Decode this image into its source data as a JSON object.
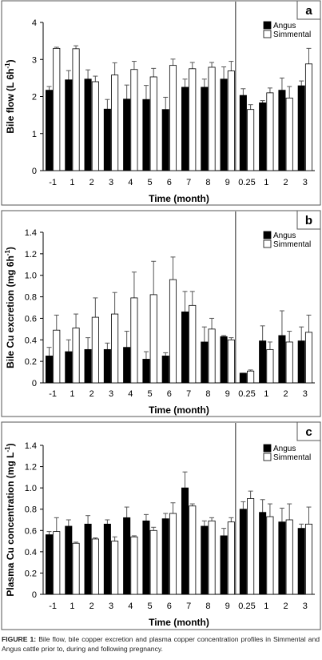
{
  "caption": {
    "label": "FIGURE 1:",
    "text": " Bile flow, bile copper excretion and plasma copper concentration profiles in Simmental and Angus cattle prior to, during and following pregnancy."
  },
  "colors": {
    "angus": "#000000",
    "simmental": "#ffffff",
    "border": "#555555",
    "divider": "#222222"
  },
  "chart_data": [
    {
      "type": "bar",
      "panel_letter": "a",
      "ylabel_main": "Bile flow (L 6h",
      "ylabel_sup": "-1",
      "ylabel_tail": ")",
      "xlabel": "Time (month)",
      "ylim": [
        0,
        4
      ],
      "yticks": [
        "0",
        "1",
        "2",
        "3",
        "4"
      ],
      "categories": [
        "-1",
        "1",
        "2",
        "3",
        "4",
        "5",
        "6",
        "7",
        "8",
        "9",
        "0.25",
        "1",
        "2",
        "3"
      ],
      "legend_position": "top-right",
      "series": [
        {
          "name": "Angus",
          "values": [
            2.17,
            2.45,
            2.47,
            1.66,
            1.93,
            1.92,
            1.65,
            2.25,
            2.25,
            2.47,
            2.03,
            1.83,
            2.17,
            2.29
          ],
          "errors": [
            0.1,
            0.25,
            0.25,
            0.26,
            0.38,
            0.38,
            0.33,
            0.22,
            0.22,
            0.33,
            0.18,
            0.06,
            0.33,
            0.13
          ]
        },
        {
          "name": "Simmental",
          "values": [
            3.3,
            3.29,
            2.4,
            2.58,
            2.73,
            2.53,
            2.84,
            2.75,
            2.79,
            2.69,
            1.65,
            2.1,
            1.96,
            2.88
          ],
          "errors": [
            0.03,
            0.08,
            0.15,
            0.33,
            0.22,
            0.23,
            0.17,
            0.17,
            0.13,
            0.26,
            0.13,
            0.13,
            0.31,
            0.42
          ]
        }
      ]
    },
    {
      "type": "bar",
      "panel_letter": "b",
      "ylabel_main": "Bile Cu excretion (mg 6h",
      "ylabel_sup": "-1",
      "ylabel_tail": ")",
      "xlabel": "Time (month)",
      "ylim": [
        0,
        1.4
      ],
      "yticks": [
        "0",
        "0.2",
        "0.4",
        "0.6",
        "0.8",
        "1.0",
        "1.2",
        "1.4"
      ],
      "categories": [
        "-1",
        "1",
        "2",
        "3",
        "4",
        "5",
        "6",
        "7",
        "8",
        "9",
        "0.25",
        "1",
        "2",
        "3"
      ],
      "legend_position": "top-right",
      "series": [
        {
          "name": "Angus",
          "values": [
            0.25,
            0.29,
            0.31,
            0.31,
            0.33,
            0.22,
            0.25,
            0.66,
            0.38,
            0.43,
            0.09,
            0.39,
            0.44,
            0.39
          ],
          "errors": [
            0.08,
            0.11,
            0.11,
            0.06,
            0.15,
            0.07,
            0.03,
            0.19,
            0.14,
            0.01,
            0.0,
            0.14,
            0.23,
            0.13
          ]
        },
        {
          "name": "Simmental",
          "values": [
            0.49,
            0.51,
            0.61,
            0.64,
            0.79,
            0.82,
            0.96,
            0.72,
            0.5,
            0.4,
            0.11,
            0.31,
            0.38,
            0.47
          ],
          "errors": [
            0.14,
            0.13,
            0.18,
            0.2,
            0.24,
            0.31,
            0.21,
            0.13,
            0.1,
            0.02,
            0.01,
            0.07,
            0.1,
            0.16
          ]
        }
      ]
    },
    {
      "type": "bar",
      "panel_letter": "c",
      "ylabel_main": "Plasma Cu concentration (mg L",
      "ylabel_sup": "-1",
      "ylabel_tail": ")",
      "xlabel": "Time (month)",
      "ylim": [
        0,
        1.4
      ],
      "yticks": [
        "0",
        "0.2",
        "0.4",
        "0.6",
        "0.8",
        "1.0",
        "1.2",
        "1.4"
      ],
      "categories": [
        "-1",
        "1",
        "2",
        "3",
        "4",
        "5",
        "6",
        "7",
        "8",
        "9",
        "0.25",
        "1",
        "2",
        "3"
      ],
      "legend_position": "top-right",
      "series": [
        {
          "name": "Angus",
          "values": [
            0.56,
            0.64,
            0.66,
            0.66,
            0.72,
            0.69,
            0.71,
            1.0,
            0.64,
            0.55,
            0.8,
            0.77,
            0.68,
            0.62
          ],
          "errors": [
            0.03,
            0.06,
            0.08,
            0.04,
            0.1,
            0.06,
            0.05,
            0.15,
            0.05,
            0.07,
            0.07,
            0.12,
            0.13,
            0.04
          ]
        },
        {
          "name": "Simmental",
          "values": [
            0.59,
            0.48,
            0.52,
            0.5,
            0.54,
            0.6,
            0.76,
            0.83,
            0.69,
            0.68,
            0.9,
            0.73,
            0.7,
            0.66
          ],
          "errors": [
            0.13,
            0.01,
            0.01,
            0.04,
            0.01,
            0.03,
            0.1,
            0.02,
            0.03,
            0.04,
            0.07,
            0.12,
            0.15,
            0.16
          ]
        }
      ]
    }
  ]
}
